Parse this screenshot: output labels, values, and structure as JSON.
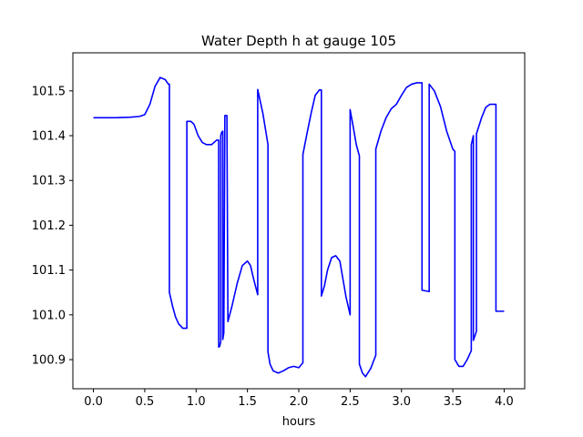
{
  "chart_data": {
    "type": "line",
    "title": "Water Depth h at gauge 105",
    "xlabel": "hours",
    "ylabel": "",
    "xlim": [
      -0.2,
      4.2
    ],
    "ylim": [
      100.835,
      101.585
    ],
    "xticks": [
      0.0,
      0.5,
      1.0,
      1.5,
      2.0,
      2.5,
      3.0,
      3.5,
      4.0
    ],
    "xtick_labels": [
      "0.0",
      "0.5",
      "1.0",
      "1.5",
      "2.0",
      "2.5",
      "3.0",
      "3.5",
      "4.0"
    ],
    "yticks": [
      100.9,
      101.0,
      101.1,
      101.2,
      101.3,
      101.4,
      101.5
    ],
    "ytick_labels": [
      "100.9",
      "101.0",
      "101.1",
      "101.2",
      "101.3",
      "101.4",
      "101.5"
    ],
    "grid": false,
    "series": [
      {
        "color": "#0000ff",
        "x": [
          0.0,
          0.2,
          0.35,
          0.45,
          0.5,
          0.55,
          0.6,
          0.65,
          0.7,
          0.73,
          0.74,
          0.74,
          0.77,
          0.8,
          0.83,
          0.87,
          0.9,
          0.91,
          0.91,
          0.95,
          0.98,
          1.02,
          1.06,
          1.1,
          1.15,
          1.2,
          1.22,
          1.22,
          1.23,
          1.24,
          1.24,
          1.25,
          1.26,
          1.26,
          1.27,
          1.28,
          1.28,
          1.3,
          1.31,
          1.31,
          1.35,
          1.4,
          1.45,
          1.5,
          1.53,
          1.56,
          1.6,
          1.6,
          1.65,
          1.7,
          1.7,
          1.72,
          1.75,
          1.8,
          1.85,
          1.9,
          1.95,
          2.0,
          2.04,
          2.04,
          2.08,
          2.12,
          2.16,
          2.2,
          2.22,
          2.22,
          2.25,
          2.28,
          2.32,
          2.36,
          2.4,
          2.43,
          2.46,
          2.5,
          2.5,
          2.53,
          2.56,
          2.59,
          2.59,
          2.62,
          2.65,
          2.7,
          2.75,
          2.75,
          2.8,
          2.85,
          2.9,
          2.95,
          3.0,
          3.05,
          3.1,
          3.15,
          3.2,
          3.2,
          3.27,
          3.27,
          3.32,
          3.38,
          3.44,
          3.5,
          3.52,
          3.52,
          3.56,
          3.6,
          3.64,
          3.68,
          3.68,
          3.7,
          3.7,
          3.73,
          3.73,
          3.78,
          3.82,
          3.86,
          3.9,
          3.92,
          3.92,
          4.0
        ],
        "y": [
          101.44,
          101.44,
          101.441,
          101.443,
          101.447,
          101.47,
          101.51,
          101.53,
          101.525,
          101.515,
          101.515,
          101.05,
          101.02,
          100.995,
          100.98,
          100.97,
          100.97,
          100.97,
          101.432,
          101.432,
          101.425,
          101.4,
          101.385,
          101.38,
          101.38,
          101.39,
          101.39,
          100.928,
          100.93,
          100.94,
          101.4,
          101.408,
          101.41,
          100.945,
          100.96,
          101.44,
          101.445,
          101.445,
          100.985,
          100.985,
          101.02,
          101.07,
          101.11,
          101.12,
          101.11,
          101.08,
          101.045,
          101.503,
          101.45,
          101.38,
          100.917,
          100.89,
          100.875,
          100.87,
          100.875,
          100.882,
          100.885,
          100.882,
          100.893,
          101.358,
          101.405,
          101.45,
          101.49,
          101.502,
          101.502,
          101.042,
          101.065,
          101.1,
          101.128,
          101.132,
          101.12,
          101.08,
          101.04,
          101.0,
          101.458,
          101.42,
          101.38,
          101.355,
          100.89,
          100.87,
          100.862,
          100.88,
          100.91,
          101.37,
          101.41,
          101.44,
          101.46,
          101.47,
          101.49,
          101.508,
          101.515,
          101.518,
          101.518,
          101.055,
          101.052,
          101.515,
          101.5,
          101.465,
          101.41,
          101.37,
          101.365,
          100.9,
          100.885,
          100.885,
          100.9,
          100.92,
          101.38,
          101.4,
          100.943,
          100.963,
          101.404,
          101.44,
          101.463,
          101.47,
          101.47,
          101.47,
          101.008,
          101.008
        ]
      }
    ]
  }
}
